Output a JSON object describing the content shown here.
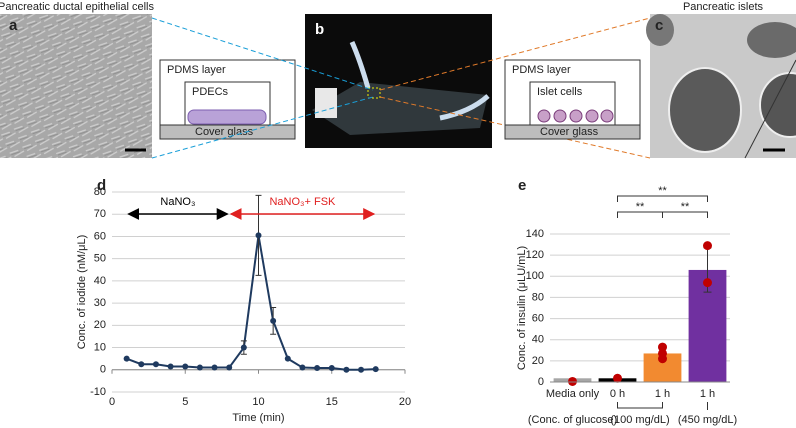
{
  "figure": {
    "a": {
      "label": "a",
      "caption": "Pancreatic ductal epithelial cells",
      "diagram": [
        "PDMS layer",
        "PDECs",
        "Cover glass"
      ]
    },
    "b": {
      "label": "b"
    },
    "c": {
      "label": "c",
      "caption": "Pancreatic islets",
      "diagram": [
        "PDMS layer",
        "Islet cells",
        "Cover glass"
      ]
    }
  },
  "chart_data": [
    {
      "type": "line",
      "label": "d",
      "xlabel": "Time (min)",
      "ylabel": "Conc. of iodide (nM/μL)",
      "x": [
        1,
        2,
        3,
        4,
        5,
        6,
        7,
        8,
        9,
        10,
        11,
        12,
        13,
        14,
        15,
        16,
        17,
        18
      ],
      "series": [
        {
          "color": "#1f3a5f",
          "values": [
            5,
            2.5,
            2.5,
            1.5,
            1.5,
            1,
            1,
            1,
            10,
            60.5,
            22,
            5,
            1,
            0.8,
            0.8,
            0,
            0,
            0.3
          ],
          "errors": [
            null,
            null,
            null,
            null,
            null,
            null,
            null,
            null,
            3,
            18,
            6,
            null,
            null,
            null,
            null,
            null,
            null,
            null
          ]
        }
      ],
      "xlim": [
        0,
        20
      ],
      "xticks": [
        0,
        5,
        10,
        15,
        20
      ],
      "ylim": [
        -10,
        80
      ],
      "yticks": [
        -10,
        0,
        10,
        20,
        30,
        40,
        50,
        60,
        70,
        80
      ],
      "grid": true,
      "annotations": [
        {
          "text": "NaNO₃",
          "x": [
            1,
            8
          ],
          "color": "#000000"
        },
        {
          "text": "NaNO₃+ FSK",
          "x": [
            8,
            18
          ],
          "color": "#e02020"
        }
      ]
    },
    {
      "type": "bar",
      "label": "e",
      "ylabel": "Conc. of insulin (μLU/mL)",
      "categories": [
        "Media only",
        "0 h",
        "1 h",
        "1 h"
      ],
      "values": [
        3.5,
        3.5,
        27,
        106
      ],
      "errors": [
        null,
        null,
        null,
        21
      ],
      "colors": [
        "#a6a6a6",
        "#000000",
        "#f28a30",
        "#7030a0"
      ],
      "points": [
        [
          0.5
        ],
        [
          3.5
        ],
        [
          22,
          27,
          33
        ],
        [
          94,
          129
        ]
      ],
      "point_color": "#c00000",
      "ylim": [
        0,
        140
      ],
      "yticks": [
        0,
        20,
        40,
        60,
        80,
        100,
        120,
        140
      ],
      "grid": true,
      "significance": [
        {
          "text": "**",
          "between": [
            1,
            2
          ]
        },
        {
          "text": "**",
          "between": [
            2,
            3
          ]
        },
        {
          "text": "**",
          "between": [
            1,
            3
          ]
        }
      ],
      "groups": [
        {
          "text": "(Conc. of glucose)",
          "categories": [
            0
          ]
        },
        {
          "text": "(100 mg/dL)",
          "categories": [
            1,
            2
          ]
        },
        {
          "text": "(450 mg/dL)",
          "categories": [
            3
          ]
        }
      ]
    }
  ]
}
